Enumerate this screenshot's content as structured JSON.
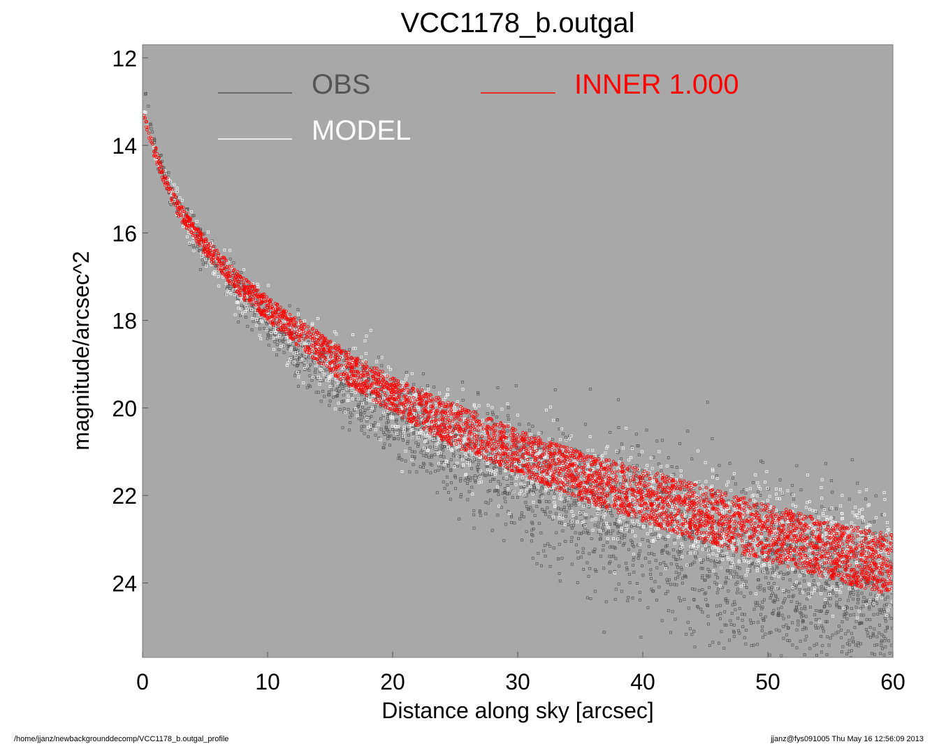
{
  "chart_data": {
    "type": "scatter",
    "title": "VCC1178_b.outgal",
    "xlabel": "Distance along sky [arcsec]",
    "ylabel": "magnitude/arcsec^2",
    "xlim": [
      0,
      60
    ],
    "ylim": [
      25.7,
      11.7
    ],
    "y_inverted": true,
    "grid": false,
    "background_color": "#a8a8a8",
    "xticks": [
      0,
      10,
      20,
      30,
      40,
      50,
      60
    ],
    "yticks": [
      12,
      14,
      16,
      18,
      20,
      22,
      24
    ],
    "legend_placement": "top",
    "legend": [
      {
        "label": "OBS",
        "color": "#555555"
      },
      {
        "label": "MODEL",
        "color": "#ffffff"
      },
      {
        "label": "INNER  1.000",
        "color": "#ff0000"
      }
    ],
    "series": [
      {
        "name": "OBS",
        "color": "#555555",
        "profile_x": [
          0.2,
          1,
          2,
          3,
          5,
          8,
          12,
          16,
          20,
          25,
          30,
          35,
          40,
          45,
          50,
          55,
          60
        ],
        "profile_center": [
          12.8,
          14.0,
          14.9,
          15.5,
          16.4,
          17.4,
          18.6,
          19.5,
          20.2,
          21.0,
          21.6,
          22.3,
          22.8,
          23.4,
          23.8,
          24.3,
          24.6
        ],
        "profile_spread": [
          0.1,
          0.2,
          0.3,
          0.3,
          0.4,
          0.5,
          0.6,
          0.8,
          1.0,
          1.2,
          1.4,
          1.6,
          1.8,
          2.0,
          2.0,
          2.0,
          2.0
        ]
      },
      {
        "name": "MODEL",
        "color": "#ffffff",
        "profile_x": [
          0.2,
          1,
          2,
          3,
          5,
          8,
          12,
          16,
          20,
          25,
          30,
          35,
          40,
          45,
          50,
          55,
          60
        ],
        "profile_center": [
          13.3,
          14.2,
          14.9,
          15.5,
          16.4,
          17.4,
          18.4,
          19.2,
          19.9,
          20.6,
          21.2,
          21.7,
          22.2,
          22.6,
          22.9,
          23.2,
          23.5
        ],
        "profile_spread": [
          0.1,
          0.15,
          0.25,
          0.35,
          0.5,
          0.6,
          0.7,
          0.75,
          0.8,
          0.85,
          0.9,
          0.95,
          1.0,
          1.05,
          1.1,
          1.15,
          1.2
        ]
      },
      {
        "name": "INNER  1.000",
        "color": "#ff0000",
        "profile_x": [
          0.2,
          1,
          2,
          3,
          5,
          8,
          12,
          16,
          20,
          25,
          30,
          35,
          40,
          45,
          50,
          55,
          60
        ],
        "profile_upper": [
          13.3,
          14.0,
          14.8,
          15.3,
          16.1,
          17.0,
          17.9,
          18.6,
          19.3,
          19.9,
          20.5,
          21.0,
          21.4,
          21.8,
          22.2,
          22.6,
          22.9
        ],
        "profile_lower": [
          13.5,
          14.4,
          15.1,
          15.7,
          16.5,
          17.5,
          18.5,
          19.4,
          20.1,
          20.9,
          21.5,
          22.1,
          22.6,
          23.1,
          23.5,
          23.9,
          24.3
        ]
      }
    ]
  },
  "footer": {
    "left": "/home/jjanz/newbackgrounddecomp/VCC1178_b.outgal_profile",
    "right": "jjanz@fys091005  Thu May 16 12:56:09 2013"
  }
}
